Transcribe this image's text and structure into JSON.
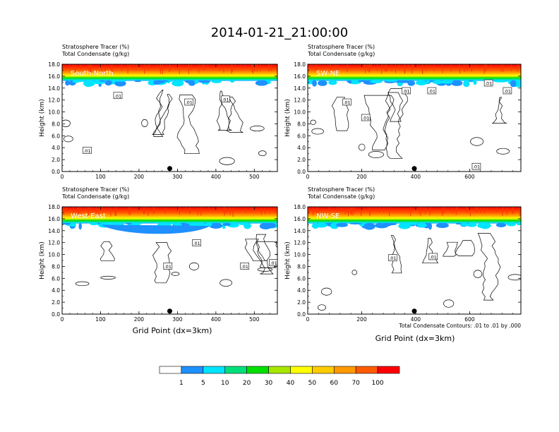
{
  "title": "2014-01-21_21:00:00",
  "footer_note": "Total Condensate Contours: .01 to .01 by .000",
  "xlabel": "Grid Point (dx=3km)",
  "ylabel": "Height (km)",
  "subtitle_line1": "Stratosphere Tracer   (%)",
  "subtitle_line2": "Total Condensate   (g/kg)",
  "colorbar": {
    "labels": [
      "1",
      "5",
      "10",
      "20",
      "30",
      "40",
      "50",
      "60",
      "70",
      "100"
    ],
    "colors": [
      "#ffffff",
      "#1e90ff",
      "#00e5ff",
      "#00e07a",
      "#00e000",
      "#a6e600",
      "#ffff00",
      "#ffcc00",
      "#ff9900",
      "#ff5a00",
      "#ff0000"
    ]
  },
  "chart_data": [
    {
      "type": "heatmap",
      "panel_label": "South-North",
      "xlim": [
        0,
        560
      ],
      "ylim": [
        0,
        18
      ],
      "xticks": [
        "0",
        "100",
        "200",
        "300",
        "400",
        "500"
      ],
      "yticks": [
        "0.0",
        "2.0",
        "4.0",
        "6.0",
        "8.0",
        "10.0",
        "12.0",
        "14.0",
        "16.0",
        "18.0"
      ],
      "marker_x": 280,
      "contour_level": ".01",
      "contour_labels": [
        {
          "text": ".01",
          "x": 145,
          "y": 12.7
        },
        {
          "text": ".01",
          "x": 330,
          "y": 11.6
        },
        {
          "text": ".01",
          "x": 425,
          "y": 12.1
        },
        {
          "text": ".01",
          "x": 65,
          "y": 3.5
        }
      ]
    },
    {
      "type": "heatmap",
      "panel_label": "SW-NE",
      "xlim": [
        0,
        790
      ],
      "ylim": [
        0,
        18
      ],
      "xticks": [
        "0",
        "200",
        "400",
        "600"
      ],
      "yticks": [
        "0.0",
        "2.0",
        "4.0",
        "6.0",
        "8.0",
        "10.0",
        "12.0",
        "14.0",
        "16.0",
        "18.0"
      ],
      "marker_x": 395,
      "contour_level": ".01",
      "contour_labels": [
        {
          "text": ".01",
          "x": 670,
          "y": 14.8
        },
        {
          "text": ".01",
          "x": 365,
          "y": 13.5
        },
        {
          "text": ".01",
          "x": 145,
          "y": 11.6
        },
        {
          "text": ".01",
          "x": 215,
          "y": 9.0
        },
        {
          "text": ".01",
          "x": 460,
          "y": 13.5
        },
        {
          "text": ".01",
          "x": 740,
          "y": 13.5
        },
        {
          "text": ".01",
          "x": 625,
          "y": 0.8
        }
      ]
    },
    {
      "type": "heatmap",
      "panel_label": "West-East",
      "xlim": [
        0,
        560
      ],
      "ylim": [
        0,
        18
      ],
      "xticks": [
        "0",
        "100",
        "200",
        "300",
        "400",
        "500"
      ],
      "yticks": [
        "0.0",
        "2.0",
        "4.0",
        "6.0",
        "8.0",
        "10.0",
        "12.0",
        "14.0",
        "16.0",
        "18.0"
      ],
      "marker_x": 280,
      "contour_level": ".01",
      "contour_labels": [
        {
          "text": ".01",
          "x": 350,
          "y": 11.9
        },
        {
          "text": ".01",
          "x": 275,
          "y": 8.0
        },
        {
          "text": ".01",
          "x": 475,
          "y": 8.0
        },
        {
          "text": ".01",
          "x": 550,
          "y": 8.6
        }
      ]
    },
    {
      "type": "heatmap",
      "panel_label": "NW-SE",
      "xlim": [
        0,
        790
      ],
      "ylim": [
        0,
        18
      ],
      "xticks": [
        "0",
        "200",
        "400",
        "600"
      ],
      "yticks": [
        "0.0",
        "2.0",
        "4.0",
        "6.0",
        "8.0",
        "10.0",
        "12.0",
        "14.0",
        "16.0",
        "18.0"
      ],
      "marker_x": 395,
      "contour_level": ".01",
      "contour_labels": [
        {
          "text": ".01",
          "x": 315,
          "y": 9.4
        },
        {
          "text": ".01",
          "x": 465,
          "y": 9.6
        }
      ]
    }
  ]
}
